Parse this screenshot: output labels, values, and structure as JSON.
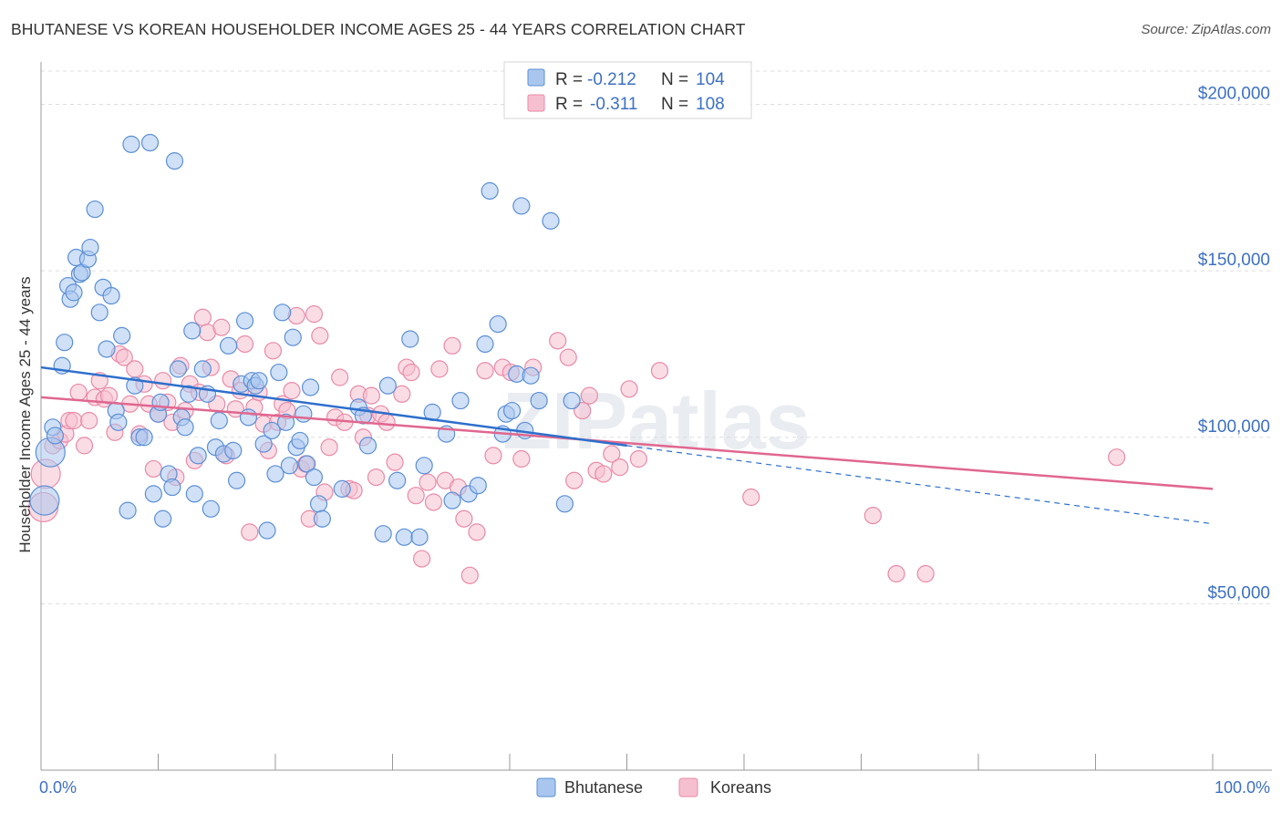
{
  "title": "BHUTANESE VS KOREAN HOUSEHOLDER INCOME AGES 25 - 44 YEARS CORRELATION CHART",
  "source": "Source: ZipAtlas.com",
  "watermark": "ZIPatlas",
  "colors": {
    "bhutanese_fill": "#a9c7ee",
    "bhutanese_stroke": "#5b8fd6",
    "bhutanese_line": "#2d6fcc",
    "koreans_fill": "#f6bfd0",
    "koreans_stroke": "#e98aa7",
    "koreans_line": "#e0678f",
    "axis_label": "#3d70c4",
    "grid": "#dddddd"
  },
  "legend": {
    "rows": [
      {
        "r_label": "R =",
        "r_value": "-0.212",
        "n_label": "N =",
        "n_value": "104"
      },
      {
        "r_label": "R =",
        "r_value": "-0.311",
        "n_label": "N =",
        "n_value": "108"
      }
    ]
  },
  "chart_data": {
    "type": "scatter",
    "ylabel": "Householder Income Ages 25 - 44 years",
    "xlim": [
      0,
      100
    ],
    "ylim": [
      0,
      210000
    ],
    "x_tick_labels": [
      "0.0%",
      "100.0%"
    ],
    "y_ticks": [
      {
        "value": 50000,
        "label": "$50,000"
      },
      {
        "value": 100000,
        "label": "$100,000"
      },
      {
        "value": 150000,
        "label": "$150,000"
      },
      {
        "value": 200000,
        "label": "$200,000"
      }
    ],
    "grid": true,
    "legend_position": "bottom",
    "series": [
      {
        "name": "Bhutanese",
        "trend": {
          "x0": 0,
          "y0": 121000,
          "x1": 50,
          "y1": 97500,
          "x_dash_end": 100,
          "y_dash_end": 74000
        },
        "points": [
          [
            0.3,
            81000
          ],
          [
            0.8,
            95500
          ],
          [
            1.0,
            103000
          ],
          [
            1.2,
            100500
          ],
          [
            1.8,
            121500
          ],
          [
            2.0,
            128500
          ],
          [
            2.3,
            145500
          ],
          [
            2.5,
            141500
          ],
          [
            2.8,
            143500
          ],
          [
            3.0,
            154000
          ],
          [
            3.3,
            149000
          ],
          [
            3.5,
            149500
          ],
          [
            4.0,
            153500
          ],
          [
            4.2,
            157000
          ],
          [
            4.6,
            168500
          ],
          [
            5.0,
            137500
          ],
          [
            5.3,
            145000
          ],
          [
            5.6,
            126500
          ],
          [
            6.0,
            142500
          ],
          [
            6.4,
            108000
          ],
          [
            6.6,
            104500
          ],
          [
            6.9,
            130500
          ],
          [
            7.4,
            78000
          ],
          [
            7.7,
            188000
          ],
          [
            8.0,
            115500
          ],
          [
            8.4,
            100000
          ],
          [
            8.8,
            100000
          ],
          [
            9.3,
            188500
          ],
          [
            9.6,
            83000
          ],
          [
            10.0,
            107000
          ],
          [
            10.2,
            110500
          ],
          [
            10.4,
            75500
          ],
          [
            10.9,
            89000
          ],
          [
            11.2,
            85000
          ],
          [
            11.4,
            183000
          ],
          [
            11.7,
            120500
          ],
          [
            12.0,
            106000
          ],
          [
            12.3,
            103000
          ],
          [
            12.6,
            113000
          ],
          [
            12.9,
            132000
          ],
          [
            13.1,
            83000
          ],
          [
            13.4,
            94500
          ],
          [
            13.8,
            120500
          ],
          [
            14.2,
            113000
          ],
          [
            14.5,
            78500
          ],
          [
            14.9,
            97000
          ],
          [
            15.2,
            105000
          ],
          [
            15.6,
            95000
          ],
          [
            16.0,
            127500
          ],
          [
            16.4,
            96000
          ],
          [
            16.7,
            87000
          ],
          [
            17.1,
            116000
          ],
          [
            17.4,
            135000
          ],
          [
            17.7,
            106000
          ],
          [
            18.0,
            117000
          ],
          [
            18.3,
            115500
          ],
          [
            18.6,
            117000
          ],
          [
            19.0,
            98000
          ],
          [
            19.3,
            72000
          ],
          [
            19.7,
            102000
          ],
          [
            20.0,
            89000
          ],
          [
            20.3,
            119500
          ],
          [
            20.6,
            137500
          ],
          [
            20.9,
            104500
          ],
          [
            21.2,
            91500
          ],
          [
            21.5,
            130000
          ],
          [
            21.8,
            97000
          ],
          [
            22.1,
            99000
          ],
          [
            22.4,
            107000
          ],
          [
            22.7,
            92000
          ],
          [
            23.0,
            115000
          ],
          [
            23.3,
            88000
          ],
          [
            23.7,
            80000
          ],
          [
            24.0,
            75500
          ],
          [
            25.7,
            84500
          ],
          [
            27.1,
            109000
          ],
          [
            27.5,
            106500
          ],
          [
            27.9,
            97500
          ],
          [
            29.2,
            71000
          ],
          [
            29.6,
            115500
          ],
          [
            30.4,
            87000
          ],
          [
            31.0,
            70000
          ],
          [
            31.5,
            129500
          ],
          [
            32.3,
            70000
          ],
          [
            32.7,
            91500
          ],
          [
            33.4,
            107500
          ],
          [
            34.6,
            101000
          ],
          [
            35.1,
            81000
          ],
          [
            35.8,
            111000
          ],
          [
            36.5,
            83000
          ],
          [
            37.3,
            85500
          ],
          [
            37.9,
            128000
          ],
          [
            38.3,
            174000
          ],
          [
            39.0,
            134000
          ],
          [
            39.4,
            101000
          ],
          [
            39.7,
            107000
          ],
          [
            40.2,
            108000
          ],
          [
            40.6,
            119000
          ],
          [
            41.0,
            169500
          ],
          [
            41.3,
            102000
          ],
          [
            41.8,
            118500
          ],
          [
            42.5,
            111000
          ],
          [
            43.5,
            165000
          ],
          [
            44.7,
            80000
          ],
          [
            45.3,
            111000
          ]
        ]
      },
      {
        "name": "Koreans",
        "trend": {
          "x0": 0,
          "y0": 112000,
          "x1": 100,
          "y1": 84500
        },
        "points": [
          [
            0.2,
            79000
          ],
          [
            0.4,
            89000
          ],
          [
            1.0,
            97500
          ],
          [
            1.6,
            99000
          ],
          [
            2.1,
            101000
          ],
          [
            2.4,
            105000
          ],
          [
            2.8,
            105000
          ],
          [
            3.2,
            113500
          ],
          [
            3.7,
            97500
          ],
          [
            4.1,
            105000
          ],
          [
            4.6,
            112000
          ],
          [
            5.0,
            117000
          ],
          [
            5.4,
            111500
          ],
          [
            5.8,
            112500
          ],
          [
            6.3,
            101500
          ],
          [
            6.7,
            125000
          ],
          [
            7.1,
            124000
          ],
          [
            7.6,
            110000
          ],
          [
            8.0,
            120500
          ],
          [
            8.4,
            101000
          ],
          [
            8.8,
            116000
          ],
          [
            9.2,
            110000
          ],
          [
            9.6,
            90500
          ],
          [
            10.0,
            107000
          ],
          [
            10.4,
            117000
          ],
          [
            10.8,
            110500
          ],
          [
            11.2,
            104500
          ],
          [
            11.5,
            88000
          ],
          [
            11.9,
            121500
          ],
          [
            12.3,
            108000
          ],
          [
            12.7,
            116000
          ],
          [
            13.1,
            93000
          ],
          [
            13.5,
            113500
          ],
          [
            13.8,
            136000
          ],
          [
            14.2,
            131500
          ],
          [
            14.5,
            121000
          ],
          [
            15.0,
            110000
          ],
          [
            15.4,
            133000
          ],
          [
            15.8,
            94500
          ],
          [
            16.2,
            117500
          ],
          [
            16.6,
            108500
          ],
          [
            17.0,
            114000
          ],
          [
            17.4,
            128000
          ],
          [
            17.8,
            71500
          ],
          [
            18.2,
            109000
          ],
          [
            18.6,
            113500
          ],
          [
            19.0,
            104000
          ],
          [
            19.4,
            96000
          ],
          [
            19.8,
            126000
          ],
          [
            20.2,
            104500
          ],
          [
            20.6,
            110000
          ],
          [
            21.0,
            108000
          ],
          [
            21.4,
            114000
          ],
          [
            21.8,
            136500
          ],
          [
            22.2,
            90500
          ],
          [
            22.6,
            92000
          ],
          [
            22.9,
            75500
          ],
          [
            23.3,
            137000
          ],
          [
            23.8,
            130500
          ],
          [
            24.2,
            83500
          ],
          [
            24.6,
            97000
          ],
          [
            25.1,
            106000
          ],
          [
            25.5,
            118000
          ],
          [
            25.9,
            104500
          ],
          [
            26.3,
            84500
          ],
          [
            26.7,
            84000
          ],
          [
            27.1,
            113000
          ],
          [
            27.5,
            100000
          ],
          [
            27.9,
            106500
          ],
          [
            28.2,
            112500
          ],
          [
            28.6,
            88000
          ],
          [
            29.0,
            107000
          ],
          [
            29.5,
            104500
          ],
          [
            30.2,
            92500
          ],
          [
            30.8,
            113000
          ],
          [
            31.2,
            121000
          ],
          [
            31.6,
            119500
          ],
          [
            32.0,
            82500
          ],
          [
            32.5,
            63500
          ],
          [
            33.0,
            86500
          ],
          [
            33.5,
            80500
          ],
          [
            34.0,
            120500
          ],
          [
            34.5,
            87000
          ],
          [
            35.1,
            127500
          ],
          [
            35.6,
            85000
          ],
          [
            36.1,
            75500
          ],
          [
            36.6,
            58500
          ],
          [
            37.2,
            71500
          ],
          [
            37.9,
            120000
          ],
          [
            38.6,
            94500
          ],
          [
            39.4,
            121000
          ],
          [
            40.1,
            119500
          ],
          [
            41.0,
            93500
          ],
          [
            42.0,
            121000
          ],
          [
            44.1,
            129000
          ],
          [
            45.0,
            124000
          ],
          [
            45.5,
            87000
          ],
          [
            46.2,
            108000
          ],
          [
            46.8,
            112500
          ],
          [
            47.4,
            90000
          ],
          [
            48.0,
            89000
          ],
          [
            48.7,
            95000
          ],
          [
            49.4,
            91000
          ],
          [
            50.2,
            114500
          ],
          [
            51.0,
            93500
          ],
          [
            52.8,
            120000
          ],
          [
            60.6,
            82000
          ],
          [
            71.0,
            76500
          ],
          [
            73.0,
            59000
          ],
          [
            75.5,
            59000
          ],
          [
            91.8,
            94000
          ]
        ]
      }
    ]
  }
}
